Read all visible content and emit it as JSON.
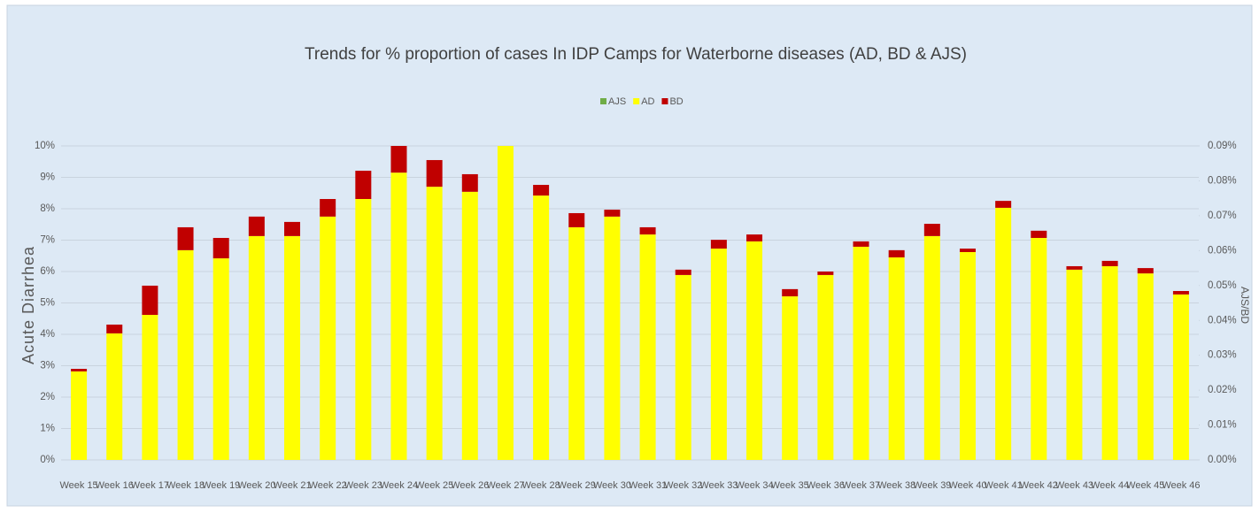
{
  "chart_data": {
    "type": "stacked_bar",
    "title": "Trends for % proportion of cases In IDP Camps for Waterborne diseases (AD, BD & AJS)",
    "y_label": "Acute Diarrhea",
    "y2_label": "AJS/BD",
    "categories": [
      "Week 15",
      "Week 16",
      "Week 17",
      "Week 18",
      "Week 19",
      "Week 20",
      "Week 21",
      "Week 22",
      "Week 23",
      "Week 24",
      "Week 25",
      "Week 26",
      "Week 27",
      "Week 28",
      "Week 29",
      "Week 30",
      "Week 31",
      "Week 32",
      "Week 33",
      "Week 34",
      "Week 35",
      "Week 36",
      "Week 37",
      "Week 38",
      "Week 39",
      "Week 40",
      "Week 41",
      "Week 42",
      "Week 43",
      "Week 44",
      "Week 45",
      "Week 46"
    ],
    "series": [
      {
        "name": "AJS",
        "color": "#70ad47",
        "axis": "y2",
        "values": [
          0,
          0,
          0,
          0,
          0,
          0,
          0,
          0,
          0,
          0,
          0,
          0,
          0,
          0,
          0,
          0,
          0,
          0,
          0,
          0,
          0,
          0,
          0,
          0,
          0,
          0,
          0,
          0,
          0,
          0,
          0,
          0
        ]
      },
      {
        "name": "AD",
        "color": "#ffff00",
        "values": [
          2.82,
          4.03,
          4.62,
          6.68,
          6.42,
          7.13,
          7.13,
          7.75,
          8.31,
          9.15,
          8.7,
          8.54,
          10,
          8.42,
          7.41,
          7.75,
          7.18,
          5.89,
          6.73,
          6.96,
          5.21,
          5.89,
          6.79,
          6.45,
          7.13,
          6.62,
          8.03,
          7.07,
          6.06,
          6.17,
          5.94,
          5.27
        ]
      },
      {
        "name": "BD",
        "color": "#c00000",
        "values": [
          0.08,
          0.28,
          0.93,
          0.73,
          0.65,
          0.62,
          0.45,
          0.56,
          0.9,
          0.85,
          0.85,
          0.56,
          0,
          0.34,
          0.45,
          0.22,
          0.23,
          0.17,
          0.28,
          0.22,
          0.23,
          0.11,
          0.17,
          0.23,
          0.39,
          0.11,
          0.22,
          0.23,
          0.11,
          0.17,
          0.17,
          0.11
        ]
      }
    ],
    "ylim": [
      0,
      10
    ],
    "yticks": [
      {
        "value": 0,
        "label": "0%"
      },
      {
        "value": 1,
        "label": "1%"
      },
      {
        "value": 2,
        "label": "2%"
      },
      {
        "value": 3,
        "label": "3%"
      },
      {
        "value": 4,
        "label": "4%"
      },
      {
        "value": 5,
        "label": "5%"
      },
      {
        "value": 6,
        "label": "6%"
      },
      {
        "value": 7,
        "label": "7%"
      },
      {
        "value": 8,
        "label": "8%"
      },
      {
        "value": 9,
        "label": "9%"
      },
      {
        "value": 10,
        "label": "10%"
      }
    ],
    "y2lim": [
      0,
      0.09
    ],
    "y2ticks": [
      {
        "value": 0,
        "label": "0.00%"
      },
      {
        "value": 0.01,
        "label": "0.01%"
      },
      {
        "value": 0.02,
        "label": "0.02%"
      },
      {
        "value": 0.03,
        "label": "0.03%"
      },
      {
        "value": 0.04,
        "label": "0.04%"
      },
      {
        "value": 0.05,
        "label": "0.05%"
      },
      {
        "value": 0.06,
        "label": "0.06%"
      },
      {
        "value": 0.07,
        "label": "0.07%"
      },
      {
        "value": 0.08,
        "label": "0.08%"
      },
      {
        "value": 0.09,
        "label": "0.09%"
      }
    ],
    "grid": true,
    "legend": "top"
  }
}
